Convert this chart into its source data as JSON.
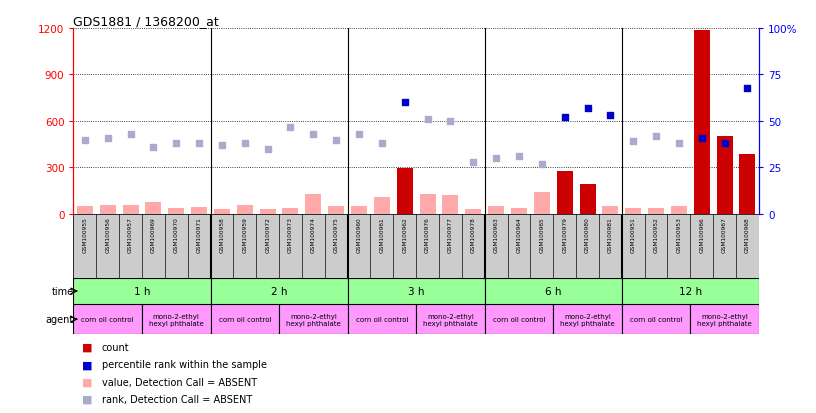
{
  "title": "GDS1881 / 1368200_at",
  "samples": [
    "GSM100955",
    "GSM100956",
    "GSM100957",
    "GSM100969",
    "GSM100970",
    "GSM100971",
    "GSM100958",
    "GSM100959",
    "GSM100972",
    "GSM100973",
    "GSM100974",
    "GSM100975",
    "GSM100960",
    "GSM100961",
    "GSM100962",
    "GSM100976",
    "GSM100977",
    "GSM100978",
    "GSM100963",
    "GSM100964",
    "GSM100965",
    "GSM100979",
    "GSM100980",
    "GSM100981",
    "GSM100951",
    "GSM100952",
    "GSM100953",
    "GSM100966",
    "GSM100967",
    "GSM100968"
  ],
  "count_values": [
    50,
    60,
    55,
    80,
    40,
    45,
    30,
    55,
    35,
    40,
    130,
    50,
    50,
    110,
    295,
    130,
    125,
    35,
    50,
    40,
    145,
    280,
    195,
    50,
    40,
    40,
    50,
    1190,
    505,
    390
  ],
  "count_absent": [
    true,
    true,
    true,
    true,
    true,
    true,
    true,
    true,
    true,
    true,
    true,
    true,
    true,
    true,
    false,
    true,
    true,
    true,
    true,
    true,
    true,
    false,
    false,
    true,
    true,
    true,
    true,
    false,
    false,
    false
  ],
  "rank_values": [
    40,
    41,
    43,
    36,
    38,
    38,
    37,
    38,
    35,
    47,
    43,
    40,
    43,
    38,
    60,
    51,
    50,
    28,
    30,
    31,
    27,
    52,
    57,
    53,
    39,
    42,
    38,
    41,
    38,
    68
  ],
  "rank_absent": [
    true,
    true,
    true,
    true,
    true,
    true,
    true,
    true,
    true,
    true,
    true,
    true,
    true,
    true,
    false,
    true,
    true,
    true,
    true,
    true,
    true,
    false,
    false,
    false,
    true,
    true,
    true,
    false,
    false,
    false
  ],
  "time_groups": [
    {
      "label": "1 h",
      "start": 0,
      "end": 6
    },
    {
      "label": "2 h",
      "start": 6,
      "end": 12
    },
    {
      "label": "3 h",
      "start": 12,
      "end": 18
    },
    {
      "label": "6 h",
      "start": 18,
      "end": 24
    },
    {
      "label": "12 h",
      "start": 24,
      "end": 30
    }
  ],
  "agent_groups": [
    {
      "label": "corn oil control",
      "start": 0,
      "end": 3
    },
    {
      "label": "mono-2-ethyl\nhexyl phthalate",
      "start": 3,
      "end": 6
    },
    {
      "label": "corn oil control",
      "start": 6,
      "end": 9
    },
    {
      "label": "mono-2-ethyl\nhexyl phthalate",
      "start": 9,
      "end": 12
    },
    {
      "label": "corn oil control",
      "start": 12,
      "end": 15
    },
    {
      "label": "mono-2-ethyl\nhexyl phthalate",
      "start": 15,
      "end": 18
    },
    {
      "label": "corn oil control",
      "start": 18,
      "end": 21
    },
    {
      "label": "mono-2-ethyl\nhexyl phthalate",
      "start": 21,
      "end": 24
    },
    {
      "label": "corn oil control",
      "start": 24,
      "end": 27
    },
    {
      "label": "mono-2-ethyl\nhexyl phthalate",
      "start": 27,
      "end": 30
    }
  ],
  "ylim_left": [
    0,
    1200
  ],
  "ylim_right": [
    0,
    100
  ],
  "yticks_left": [
    0,
    300,
    600,
    900,
    1200
  ],
  "yticks_right": [
    0,
    25,
    50,
    75,
    100
  ],
  "color_count_present": "#cc0000",
  "color_count_absent": "#ffaaaa",
  "color_rank_present": "#0000cc",
  "color_rank_absent": "#aaaacc",
  "color_time_bg": "#99ff99",
  "color_agent_bg": "#ff99ff",
  "color_sample_bg": "#cccccc",
  "fig_width": 8.16,
  "fig_height": 4.14,
  "dpi": 100
}
